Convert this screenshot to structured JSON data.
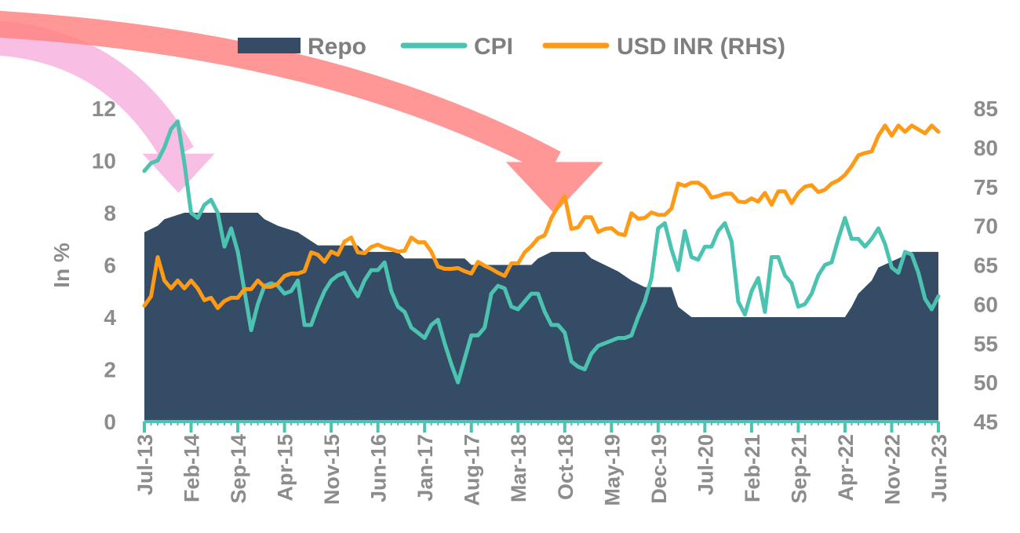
{
  "chart_data": {
    "type": "area",
    "title": "",
    "xlabel": "",
    "ylabel": "In %",
    "ylim": [
      0,
      12
    ],
    "y2lim": [
      45,
      85
    ],
    "yticks": [
      "0",
      "2",
      "4",
      "6",
      "8",
      "10",
      "12"
    ],
    "y2ticks": [
      "45",
      "50",
      "55",
      "60",
      "65",
      "70",
      "75",
      "80",
      "85"
    ],
    "x_start": "Jul-13",
    "x_end": "Jun-23",
    "xticks": [
      "Jul-13",
      "Feb-14",
      "Sep-14",
      "Apr-15",
      "Nov-15",
      "Jun-16",
      "Jan-17",
      "Aug-17",
      "Mar-18",
      "Oct-18",
      "May-19",
      "Dec-19",
      "Jul-20",
      "Feb-21",
      "Sep-21",
      "Apr-22",
      "Nov-22",
      "Jun-23"
    ],
    "legend_position": "top",
    "colors": {
      "repo": "#344c66",
      "cpi": "#4cc3b0",
      "usdinr": "#ff9a16",
      "arrow_pink": "#f7b3df",
      "arrow_red": "#ff8585"
    },
    "series": [
      {
        "name": "Repo",
        "type": "area",
        "axis": "left",
        "points": [
          [
            "Jul-13",
            7.25
          ],
          [
            "Sep-13",
            7.5
          ],
          [
            "Oct-13",
            7.75
          ],
          [
            "Jan-14",
            8.0
          ],
          [
            "Dec-14",
            8.0
          ],
          [
            "Jan-15",
            7.75
          ],
          [
            "Mar-15",
            7.5
          ],
          [
            "Jun-15",
            7.25
          ],
          [
            "Sep-15",
            6.75
          ],
          [
            "Mar-16",
            6.75
          ],
          [
            "Apr-16",
            6.5
          ],
          [
            "Sep-16",
            6.5
          ],
          [
            "Oct-16",
            6.25
          ],
          [
            "Jul-17",
            6.25
          ],
          [
            "Aug-17",
            6.0
          ],
          [
            "May-18",
            6.0
          ],
          [
            "Jun-18",
            6.25
          ],
          [
            "Aug-18",
            6.5
          ],
          [
            "Jan-19",
            6.5
          ],
          [
            "Feb-19",
            6.25
          ],
          [
            "Apr-19",
            6.0
          ],
          [
            "Jun-19",
            5.75
          ],
          [
            "Aug-19",
            5.4
          ],
          [
            "Oct-19",
            5.15
          ],
          [
            "Feb-20",
            5.15
          ],
          [
            "Mar-20",
            4.4
          ],
          [
            "May-20",
            4.0
          ],
          [
            "Apr-22",
            4.0
          ],
          [
            "May-22",
            4.4
          ],
          [
            "Jun-22",
            4.9
          ],
          [
            "Aug-22",
            5.4
          ],
          [
            "Sep-22",
            5.9
          ],
          [
            "Dec-22",
            6.25
          ],
          [
            "Feb-23",
            6.5
          ],
          [
            "Jun-23",
            6.5
          ]
        ]
      },
      {
        "name": "CPI",
        "type": "line",
        "axis": "left",
        "points": [
          [
            "Jul-13",
            9.6
          ],
          [
            "Aug-13",
            9.9
          ],
          [
            "Sep-13",
            10.0
          ],
          [
            "Oct-13",
            10.5
          ],
          [
            "Nov-13",
            11.2
          ],
          [
            "Dec-13",
            11.5
          ],
          [
            "Jan-14",
            9.9
          ],
          [
            "Feb-14",
            8.0
          ],
          [
            "Mar-14",
            7.8
          ],
          [
            "Apr-14",
            8.3
          ],
          [
            "May-14",
            8.5
          ],
          [
            "Jun-14",
            8.0
          ],
          [
            "Jul-14",
            6.7
          ],
          [
            "Aug-14",
            7.4
          ],
          [
            "Sep-14",
            6.5
          ],
          [
            "Oct-14",
            5.0
          ],
          [
            "Nov-14",
            3.5
          ],
          [
            "Dec-14",
            4.5
          ],
          [
            "Jan-15",
            5.2
          ],
          [
            "Feb-15",
            5.3
          ],
          [
            "Mar-15",
            5.2
          ],
          [
            "Apr-15",
            4.9
          ],
          [
            "May-15",
            5.0
          ],
          [
            "Jun-15",
            5.4
          ],
          [
            "Jul-15",
            3.7
          ],
          [
            "Aug-15",
            3.7
          ],
          [
            "Sep-15",
            4.4
          ],
          [
            "Oct-15",
            5.0
          ],
          [
            "Nov-15",
            5.4
          ],
          [
            "Dec-15",
            5.6
          ],
          [
            "Jan-16",
            5.7
          ],
          [
            "Feb-16",
            5.2
          ],
          [
            "Mar-16",
            4.8
          ],
          [
            "Apr-16",
            5.4
          ],
          [
            "May-16",
            5.8
          ],
          [
            "Jun-16",
            5.8
          ],
          [
            "Jul-16",
            6.1
          ],
          [
            "Aug-16",
            5.0
          ],
          [
            "Sep-16",
            4.4
          ],
          [
            "Oct-16",
            4.2
          ],
          [
            "Nov-16",
            3.6
          ],
          [
            "Dec-16",
            3.4
          ],
          [
            "Jan-17",
            3.2
          ],
          [
            "Feb-17",
            3.7
          ],
          [
            "Mar-17",
            3.9
          ],
          [
            "Apr-17",
            3.0
          ],
          [
            "May-17",
            2.2
          ],
          [
            "Jun-17",
            1.5
          ],
          [
            "Jul-17",
            2.4
          ],
          [
            "Aug-17",
            3.3
          ],
          [
            "Sep-17",
            3.3
          ],
          [
            "Oct-17",
            3.6
          ],
          [
            "Nov-17",
            4.9
          ],
          [
            "Dec-17",
            5.2
          ],
          [
            "Jan-18",
            5.1
          ],
          [
            "Feb-18",
            4.4
          ],
          [
            "Mar-18",
            4.3
          ],
          [
            "Apr-18",
            4.6
          ],
          [
            "May-18",
            4.9
          ],
          [
            "Jun-18",
            4.9
          ],
          [
            "Jul-18",
            4.2
          ],
          [
            "Aug-18",
            3.7
          ],
          [
            "Sep-18",
            3.7
          ],
          [
            "Oct-18",
            3.4
          ],
          [
            "Nov-18",
            2.3
          ],
          [
            "Dec-18",
            2.1
          ],
          [
            "Jan-19",
            2.0
          ],
          [
            "Feb-19",
            2.6
          ],
          [
            "Mar-19",
            2.9
          ],
          [
            "Apr-19",
            3.0
          ],
          [
            "May-19",
            3.1
          ],
          [
            "Jun-19",
            3.2
          ],
          [
            "Jul-19",
            3.2
          ],
          [
            "Aug-19",
            3.3
          ],
          [
            "Sep-19",
            4.0
          ],
          [
            "Oct-19",
            4.6
          ],
          [
            "Nov-19",
            5.5
          ],
          [
            "Dec-19",
            7.4
          ],
          [
            "Jan-20",
            7.6
          ],
          [
            "Feb-20",
            6.6
          ],
          [
            "Mar-20",
            5.8
          ],
          [
            "Apr-20",
            7.3
          ],
          [
            "May-20",
            6.3
          ],
          [
            "Jun-20",
            6.2
          ],
          [
            "Jul-20",
            6.7
          ],
          [
            "Aug-20",
            6.7
          ],
          [
            "Sep-20",
            7.3
          ],
          [
            "Oct-20",
            7.6
          ],
          [
            "Nov-20",
            6.9
          ],
          [
            "Dec-20",
            4.6
          ],
          [
            "Jan-21",
            4.1
          ],
          [
            "Feb-21",
            5.0
          ],
          [
            "Mar-21",
            5.5
          ],
          [
            "Apr-21",
            4.2
          ],
          [
            "May-21",
            6.3
          ],
          [
            "Jun-21",
            6.3
          ],
          [
            "Jul-21",
            5.6
          ],
          [
            "Aug-21",
            5.3
          ],
          [
            "Sep-21",
            4.4
          ],
          [
            "Oct-21",
            4.5
          ],
          [
            "Nov-21",
            4.9
          ],
          [
            "Dec-21",
            5.6
          ],
          [
            "Jan-22",
            6.0
          ],
          [
            "Feb-22",
            6.1
          ],
          [
            "Mar-22",
            7.0
          ],
          [
            "Apr-22",
            7.8
          ],
          [
            "May-22",
            7.0
          ],
          [
            "Jun-22",
            7.0
          ],
          [
            "Jul-22",
            6.7
          ],
          [
            "Aug-22",
            7.0
          ],
          [
            "Sep-22",
            7.4
          ],
          [
            "Oct-22",
            6.8
          ],
          [
            "Nov-22",
            5.9
          ],
          [
            "Dec-22",
            5.7
          ],
          [
            "Jan-23",
            6.5
          ],
          [
            "Feb-23",
            6.4
          ],
          [
            "Mar-23",
            5.7
          ],
          [
            "Apr-23",
            4.7
          ],
          [
            "May-23",
            4.3
          ],
          [
            "Jun-23",
            4.8
          ]
        ]
      },
      {
        "name": "USD INR (RHS)",
        "type": "line",
        "axis": "right",
        "points": [
          [
            "Jul-13",
            59.8
          ],
          [
            "Aug-13",
            61.0
          ],
          [
            "Sep-13",
            66.0
          ],
          [
            "Oct-13",
            63.0
          ],
          [
            "Nov-13",
            62.0
          ],
          [
            "Dec-13",
            63.0
          ],
          [
            "Jan-14",
            62.0
          ],
          [
            "Feb-14",
            63.0
          ],
          [
            "Mar-14",
            62.0
          ],
          [
            "Apr-14",
            60.5
          ],
          [
            "May-14",
            60.8
          ],
          [
            "Jun-14",
            59.5
          ],
          [
            "Jul-14",
            60.4
          ],
          [
            "Aug-14",
            60.8
          ],
          [
            "Sep-14",
            60.8
          ],
          [
            "Oct-14",
            61.9
          ],
          [
            "Nov-14",
            61.9
          ],
          [
            "Dec-14",
            63.0
          ],
          [
            "Jan-15",
            62.2
          ],
          [
            "Feb-15",
            62.2
          ],
          [
            "Mar-15",
            62.6
          ],
          [
            "Apr-15",
            63.6
          ],
          [
            "May-15",
            63.9
          ],
          [
            "Jun-15",
            63.9
          ],
          [
            "Jul-15",
            64.2
          ],
          [
            "Aug-15",
            66.6
          ],
          [
            "Sep-15",
            66.3
          ],
          [
            "Oct-15",
            65.4
          ],
          [
            "Nov-15",
            66.7
          ],
          [
            "Dec-15",
            66.3
          ],
          [
            "Jan-16",
            68.0
          ],
          [
            "Feb-16",
            68.5
          ],
          [
            "Mar-16",
            66.6
          ],
          [
            "Apr-16",
            66.5
          ],
          [
            "May-16",
            67.3
          ],
          [
            "Jun-16",
            67.6
          ],
          [
            "Jul-16",
            67.2
          ],
          [
            "Aug-16",
            67.0
          ],
          [
            "Sep-16",
            66.7
          ],
          [
            "Oct-16",
            66.8
          ],
          [
            "Nov-16",
            68.5
          ],
          [
            "Dec-16",
            67.9
          ],
          [
            "Jan-17",
            67.9
          ],
          [
            "Feb-17",
            66.7
          ],
          [
            "Mar-17",
            64.8
          ],
          [
            "Apr-17",
            64.5
          ],
          [
            "May-17",
            64.5
          ],
          [
            "Jun-17",
            64.6
          ],
          [
            "Jul-17",
            64.2
          ],
          [
            "Aug-17",
            63.9
          ],
          [
            "Sep-17",
            65.4
          ],
          [
            "Oct-17",
            64.9
          ],
          [
            "Nov-17",
            64.5
          ],
          [
            "Dec-17",
            64.0
          ],
          [
            "Jan-18",
            63.6
          ],
          [
            "Feb-18",
            65.2
          ],
          [
            "Mar-18",
            65.2
          ],
          [
            "Apr-18",
            66.6
          ],
          [
            "May-18",
            67.4
          ],
          [
            "Jun-18",
            68.4
          ],
          [
            "Jul-18",
            68.8
          ],
          [
            "Aug-18",
            71.0
          ],
          [
            "Sep-18",
            72.5
          ],
          [
            "Oct-18",
            73.8
          ],
          [
            "Nov-18",
            69.6
          ],
          [
            "Dec-18",
            69.8
          ],
          [
            "Jan-19",
            71.1
          ],
          [
            "Feb-19",
            71.1
          ],
          [
            "Mar-19",
            69.2
          ],
          [
            "Apr-19",
            69.6
          ],
          [
            "May-19",
            69.7
          ],
          [
            "Jun-19",
            69.0
          ],
          [
            "Jul-19",
            68.8
          ],
          [
            "Aug-19",
            71.6
          ],
          [
            "Sep-19",
            70.9
          ],
          [
            "Oct-19",
            71.0
          ],
          [
            "Nov-19",
            71.7
          ],
          [
            "Dec-19",
            71.4
          ],
          [
            "Jan-20",
            71.4
          ],
          [
            "Feb-20",
            72.2
          ],
          [
            "Mar-20",
            75.4
          ],
          [
            "Apr-20",
            75.1
          ],
          [
            "May-20",
            75.5
          ],
          [
            "Jun-20",
            75.5
          ],
          [
            "Jul-20",
            74.9
          ],
          [
            "Aug-20",
            73.6
          ],
          [
            "Sep-20",
            73.8
          ],
          [
            "Oct-20",
            74.1
          ],
          [
            "Nov-20",
            74.1
          ],
          [
            "Dec-20",
            73.1
          ],
          [
            "Jan-21",
            73.0
          ],
          [
            "Feb-21",
            73.5
          ],
          [
            "Mar-21",
            73.1
          ],
          [
            "Apr-21",
            74.2
          ],
          [
            "May-21",
            72.7
          ],
          [
            "Jun-21",
            74.4
          ],
          [
            "Jul-21",
            74.4
          ],
          [
            "Aug-21",
            72.9
          ],
          [
            "Sep-21",
            74.2
          ],
          [
            "Oct-21",
            75.0
          ],
          [
            "Nov-21",
            75.2
          ],
          [
            "Dec-21",
            74.3
          ],
          [
            "Jan-22",
            74.6
          ],
          [
            "Feb-22",
            75.4
          ],
          [
            "Mar-22",
            75.8
          ],
          [
            "Apr-22",
            76.5
          ],
          [
            "May-22",
            77.6
          ],
          [
            "Jun-22",
            79.0
          ],
          [
            "Jul-22",
            79.3
          ],
          [
            "Aug-22",
            79.5
          ],
          [
            "Sep-22",
            81.5
          ],
          [
            "Oct-22",
            82.8
          ],
          [
            "Nov-22",
            81.5
          ],
          [
            "Dec-22",
            82.8
          ],
          [
            "Jan-23",
            82.0
          ],
          [
            "Feb-23",
            82.8
          ],
          [
            "Mar-23",
            82.3
          ],
          [
            "Apr-23",
            81.8
          ],
          [
            "May-23",
            82.8
          ],
          [
            "Jun-23",
            82.0
          ]
        ]
      }
    ],
    "annotations": [
      {
        "shape": "curved-arrow",
        "color": "pink",
        "from_month": "Jul-13",
        "from_y": 14.7,
        "to_month": "Oct-13",
        "to_y": 9.0
      },
      {
        "shape": "curved-arrow",
        "color": "red",
        "from_month": "Oct-13",
        "from_y": 15.3,
        "to_month": "Aug-18",
        "to_y": 8.2
      }
    ]
  }
}
